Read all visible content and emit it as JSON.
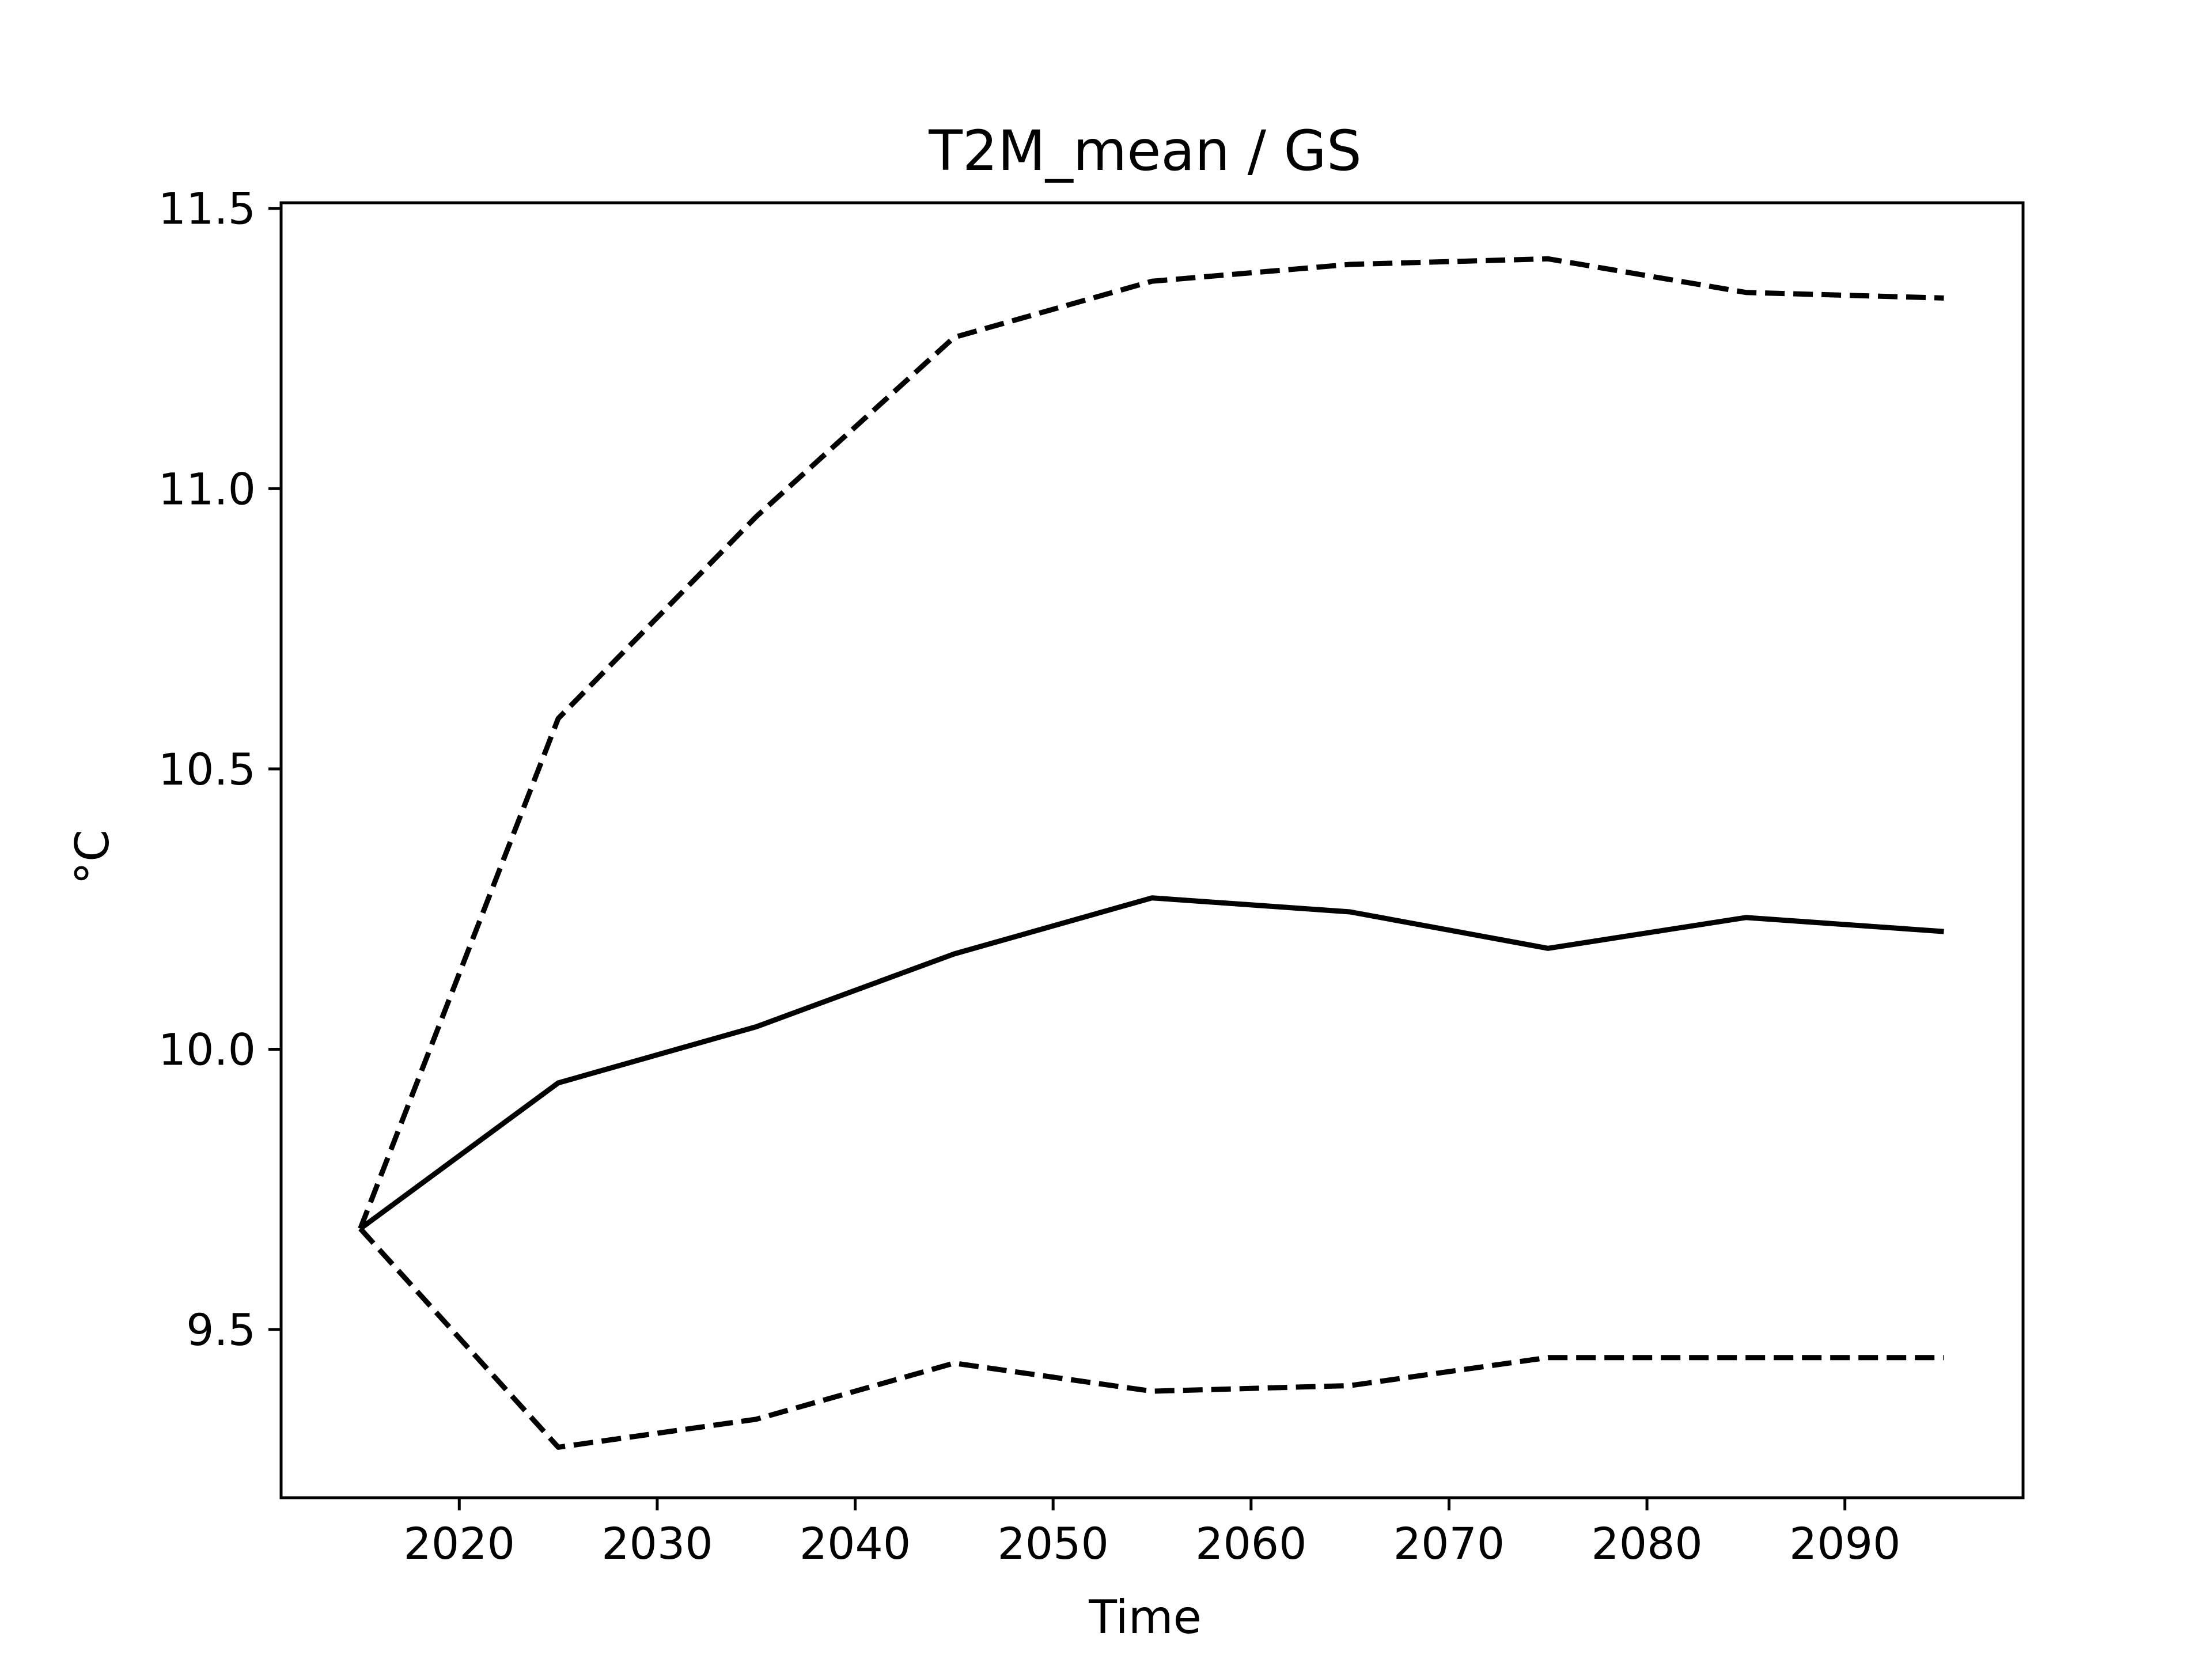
{
  "chart_data": {
    "type": "line",
    "title": "T2M_mean / GS",
    "xlabel": "Time",
    "ylabel": "°C",
    "xlim": [
      2011,
      2099
    ],
    "ylim": [
      9.2,
      11.51
    ],
    "xticks": [
      2020,
      2030,
      2040,
      2050,
      2060,
      2070,
      2080,
      2090
    ],
    "xtick_labels": [
      "2020",
      "2030",
      "2040",
      "2050",
      "2060",
      "2070",
      "2080",
      "2090"
    ],
    "yticks": [
      9.5,
      10.0,
      10.5,
      11.0,
      11.5
    ],
    "ytick_labels": [
      "9.5",
      "10.0",
      "10.5",
      "11.0",
      "11.5"
    ],
    "grid": false,
    "legend": null,
    "x": [
      2015,
      2025,
      2035,
      2045,
      2055,
      2065,
      2075,
      2085,
      2095
    ],
    "series": [
      {
        "style": "dashed",
        "color": "#000000",
        "values": [
          9.68,
          10.59,
          10.95,
          11.27,
          11.37,
          11.4,
          11.41,
          11.35,
          11.34
        ]
      },
      {
        "style": "solid",
        "color": "#000000",
        "values": [
          9.68,
          9.94,
          10.04,
          10.17,
          10.27,
          10.245,
          10.18,
          10.235,
          10.21
        ]
      },
      {
        "style": "dashed",
        "color": "#000000",
        "values": [
          9.68,
          9.29,
          9.34,
          9.44,
          9.39,
          9.4,
          9.45,
          9.45,
          9.45
        ]
      }
    ]
  }
}
